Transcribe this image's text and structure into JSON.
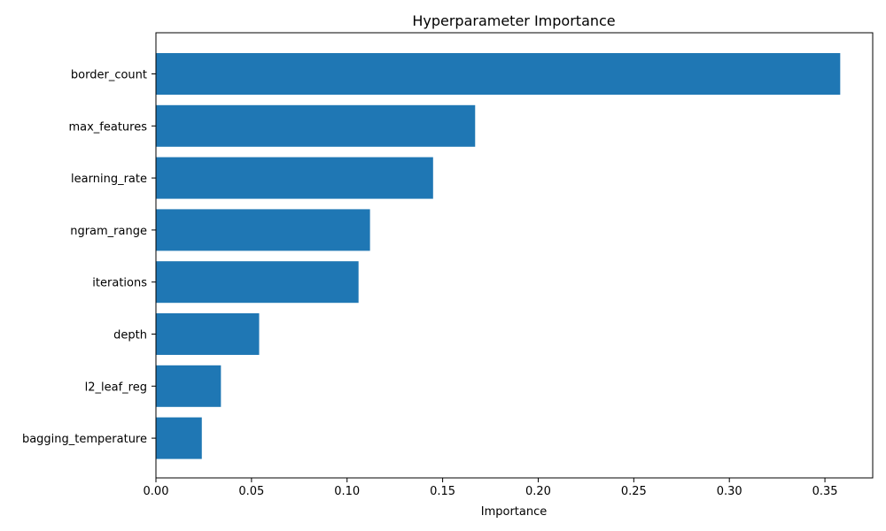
{
  "chart_data": {
    "type": "bar",
    "orientation": "horizontal",
    "title": "Hyperparameter Importance",
    "xlabel": "Importance",
    "ylabel": "",
    "categories": [
      "border_count",
      "max_features",
      "learning_rate",
      "ngram_range",
      "iterations",
      "depth",
      "l2_leaf_reg",
      "bagging_temperature"
    ],
    "values": [
      0.358,
      0.167,
      0.145,
      0.112,
      0.106,
      0.054,
      0.034,
      0.024
    ],
    "xlim": [
      0,
      0.375
    ],
    "xticks": [
      0.0,
      0.05,
      0.1,
      0.15,
      0.2,
      0.25,
      0.3,
      0.35
    ],
    "xtick_labels": [
      "0.00",
      "0.05",
      "0.10",
      "0.15",
      "0.20",
      "0.25",
      "0.30",
      "0.35"
    ],
    "bar_color": "#1f77b4",
    "grid": false,
    "legend": "none"
  }
}
